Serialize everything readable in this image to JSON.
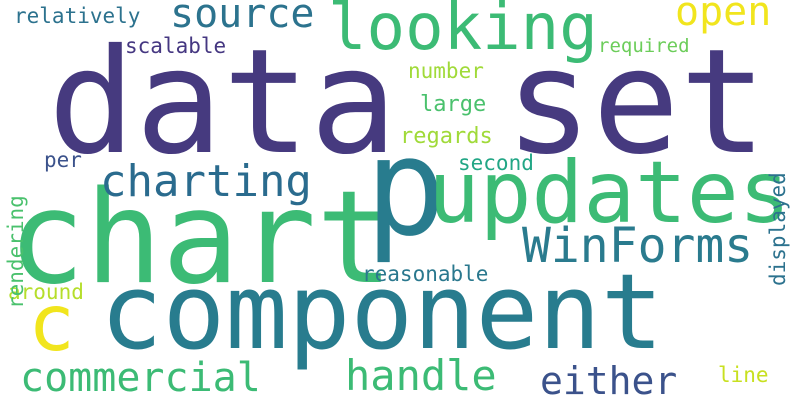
{
  "words": {
    "data": "data",
    "set": "set",
    "chart": "chart",
    "component": "component",
    "p": "p",
    "updates": "updates",
    "looking": "looking",
    "winforms": "WinForms",
    "charting": "charting",
    "source": "source",
    "open": "open",
    "c": "c",
    "commercial": "commercial",
    "handle": "handle",
    "either": "either",
    "relatively": "relatively",
    "scalable": "scalable",
    "required": "required",
    "number": "number",
    "large": "large",
    "regards": "regards",
    "per": "per",
    "second": "second",
    "reasonable": "reasonable",
    "around": "around",
    "line": "line",
    "rendering": "rendering",
    "displayed": "displayed"
  },
  "colors": {
    "data": "#463a7f",
    "set": "#463a7f",
    "chart": "#3cbb75",
    "component": "#287c8e",
    "p": "#287c8e",
    "updates": "#3cbb75",
    "looking": "#3cbb75",
    "winforms": "#2a7b8e",
    "charting": "#2a6b8e",
    "source": "#2c738e",
    "open": "#f1e51d",
    "c": "#f1e51d",
    "commercial": "#3cbb75",
    "handle": "#3cbb75",
    "either": "#3b528b",
    "relatively": "#2c728e",
    "scalable": "#453781",
    "required": "#6ccd5a",
    "number": "#a0da39",
    "large": "#4ac16d",
    "regards": "#a0da39",
    "per": "#3b528b",
    "second": "#21a685",
    "reasonable": "#2a788e",
    "around": "#b5de2b",
    "line": "#c8e020",
    "rendering": "#4ac16d",
    "displayed": "#2c728e"
  }
}
